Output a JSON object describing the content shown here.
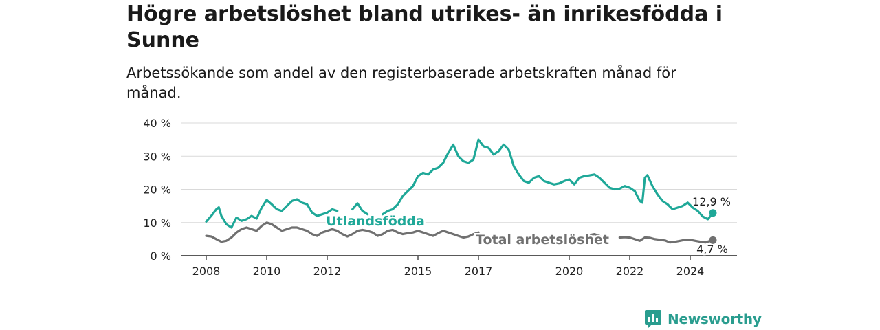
{
  "title": "Högre arbetslöshet bland utrikes- än inrikesfödda i Sunne",
  "subtitle": "Arbetssökande som andel av den registerbaserade arbetskraften månad för månad.",
  "brand": {
    "name": "Newsworthy",
    "color": "#2a9d8f",
    "icon": "newsworthy-logo-icon"
  },
  "colors": {
    "utlandsfodda": "#1fa898",
    "total": "#707070",
    "grid": "#d9d9d9",
    "axis": "#222222"
  },
  "chart_data": {
    "type": "line",
    "title": "Högre arbetslöshet bland utrikes- än inrikesfödda i Sunne",
    "subtitle": "Arbetssökande som andel av den registerbaserade arbetskraften månad för månad.",
    "xlabel": "",
    "ylabel": "",
    "xlim": [
      "2008-01",
      "2025-12"
    ],
    "ylim": [
      0,
      40
    ],
    "grid": true,
    "legend": "direct-labels",
    "yticks": [
      0,
      10,
      20,
      30,
      40
    ],
    "ytick_labels": [
      "0 %",
      "10 %",
      "20 %",
      "30 %",
      "40 %"
    ],
    "xticks": [
      "2008-01",
      "2010-01",
      "2012-01",
      "2015-01",
      "2017-01",
      "2020-01",
      "2022-01",
      "2024-01"
    ],
    "xtick_labels": [
      "2008",
      "2010",
      "2012",
      "2015",
      "2017",
      "2020",
      "2022",
      "2024"
    ],
    "series": [
      {
        "name": "Utlandsfödda",
        "color": "#1fa898",
        "end_label": "12,9 %",
        "segments": [
          [
            [
              "2008-01",
              10.3
            ],
            [
              "2008-03",
              12.0
            ],
            [
              "2008-05",
              14.0
            ],
            [
              "2008-06",
              14.6
            ],
            [
              "2008-07",
              12.0
            ],
            [
              "2008-09",
              9.5
            ],
            [
              "2008-11",
              8.5
            ],
            [
              "2009-01",
              11.5
            ],
            [
              "2009-03",
              10.5
            ],
            [
              "2009-05",
              11.0
            ],
            [
              "2009-07",
              12.0
            ],
            [
              "2009-09",
              11.2
            ],
            [
              "2009-11",
              14.5
            ],
            [
              "2010-01",
              16.8
            ],
            [
              "2010-03",
              15.5
            ],
            [
              "2010-05",
              14.0
            ],
            [
              "2010-07",
              13.5
            ],
            [
              "2010-09",
              15.0
            ],
            [
              "2010-11",
              16.5
            ],
            [
              "2011-01",
              17.0
            ],
            [
              "2011-03",
              16.0
            ],
            [
              "2011-05",
              15.5
            ],
            [
              "2011-07",
              13.0
            ],
            [
              "2011-09",
              12.0
            ],
            [
              "2011-11",
              12.5
            ],
            [
              "2012-01",
              13.0
            ],
            [
              "2012-03",
              14.0
            ],
            [
              "2012-05",
              13.5
            ]
          ],
          [
            [
              "2012-11",
              14.0
            ],
            [
              "2013-01",
              15.8
            ],
            [
              "2013-03",
              13.5
            ],
            [
              "2013-05",
              12.5
            ]
          ],
          [
            [
              "2013-11",
              12.5
            ],
            [
              "2014-01",
              13.5
            ],
            [
              "2014-03",
              14.0
            ],
            [
              "2014-05",
              15.5
            ],
            [
              "2014-07",
              18.0
            ],
            [
              "2014-09",
              19.5
            ],
            [
              "2014-11",
              21.0
            ],
            [
              "2015-01",
              24.0
            ],
            [
              "2015-03",
              25.0
            ],
            [
              "2015-05",
              24.5
            ],
            [
              "2015-07",
              26.0
            ],
            [
              "2015-09",
              26.5
            ],
            [
              "2015-11",
              28.0
            ],
            [
              "2016-01",
              31.0
            ],
            [
              "2016-03",
              33.5
            ],
            [
              "2016-05",
              30.0
            ],
            [
              "2016-07",
              28.5
            ],
            [
              "2016-09",
              28.0
            ],
            [
              "2016-11",
              29.0
            ],
            [
              "2017-01",
              35.0
            ],
            [
              "2017-03",
              33.0
            ],
            [
              "2017-05",
              32.5
            ],
            [
              "2017-07",
              30.5
            ],
            [
              "2017-09",
              31.5
            ],
            [
              "2017-11",
              33.5
            ],
            [
              "2018-01",
              32.0
            ],
            [
              "2018-03",
              27.0
            ],
            [
              "2018-05",
              24.5
            ],
            [
              "2018-07",
              22.5
            ],
            [
              "2018-09",
              22.0
            ],
            [
              "2018-11",
              23.5
            ],
            [
              "2019-01",
              24.0
            ],
            [
              "2019-03",
              22.5
            ],
            [
              "2019-05",
              22.0
            ],
            [
              "2019-07",
              21.5
            ],
            [
              "2019-09",
              21.8
            ],
            [
              "2019-11",
              22.5
            ],
            [
              "2020-01",
              23.0
            ],
            [
              "2020-03",
              21.5
            ],
            [
              "2020-05",
              23.5
            ],
            [
              "2020-07",
              24.0
            ],
            [
              "2020-09",
              24.2
            ],
            [
              "2020-11",
              24.5
            ],
            [
              "2021-01",
              23.5
            ],
            [
              "2021-03",
              22.0
            ],
            [
              "2021-05",
              20.5
            ],
            [
              "2021-07",
              20.0
            ],
            [
              "2021-09",
              20.2
            ],
            [
              "2021-11",
              21.0
            ],
            [
              "2022-01",
              20.5
            ],
            [
              "2022-03",
              19.5
            ],
            [
              "2022-05",
              16.5
            ],
            [
              "2022-06",
              16.0
            ],
            [
              "2022-07",
              23.5
            ],
            [
              "2022-08",
              24.3
            ],
            [
              "2022-10",
              21.0
            ],
            [
              "2022-12",
              18.5
            ],
            [
              "2023-02",
              16.5
            ],
            [
              "2023-04",
              15.5
            ],
            [
              "2023-06",
              14.0
            ],
            [
              "2023-08",
              14.5
            ],
            [
              "2023-10",
              15.0
            ],
            [
              "2023-12",
              16.0
            ],
            [
              "2024-02",
              14.5
            ],
            [
              "2024-04",
              13.5
            ],
            [
              "2024-06",
              11.8
            ],
            [
              "2024-08",
              11.0
            ],
            [
              "2024-10",
              12.9
            ]
          ]
        ],
        "last": [
          "2024-10",
          12.9
        ]
      },
      {
        "name": "Total arbetslöshet",
        "color": "#707070",
        "end_label": "4,7 %",
        "segments": [
          [
            [
              "2008-01",
              6.0
            ],
            [
              "2008-03",
              5.8
            ],
            [
              "2008-05",
              5.0
            ],
            [
              "2008-07",
              4.2
            ],
            [
              "2008-09",
              4.5
            ],
            [
              "2008-11",
              5.5
            ],
            [
              "2009-01",
              7.0
            ],
            [
              "2009-03",
              8.0
            ],
            [
              "2009-05",
              8.5
            ],
            [
              "2009-07",
              8.0
            ],
            [
              "2009-09",
              7.5
            ],
            [
              "2009-11",
              9.0
            ],
            [
              "2010-01",
              10.0
            ],
            [
              "2010-03",
              9.5
            ],
            [
              "2010-05",
              8.5
            ],
            [
              "2010-07",
              7.5
            ],
            [
              "2010-09",
              8.0
            ],
            [
              "2010-11",
              8.5
            ],
            [
              "2011-01",
              8.5
            ],
            [
              "2011-03",
              8.0
            ],
            [
              "2011-05",
              7.5
            ],
            [
              "2011-07",
              6.5
            ],
            [
              "2011-09",
              6.0
            ],
            [
              "2011-11",
              7.0
            ],
            [
              "2012-01",
              7.5
            ],
            [
              "2012-03",
              8.0
            ],
            [
              "2012-05",
              7.5
            ],
            [
              "2012-07",
              6.5
            ],
            [
              "2012-09",
              5.8
            ],
            [
              "2012-11",
              6.5
            ],
            [
              "2013-01",
              7.5
            ],
            [
              "2013-03",
              7.8
            ],
            [
              "2013-05",
              7.5
            ],
            [
              "2013-07",
              7.0
            ],
            [
              "2013-09",
              6.0
            ],
            [
              "2013-11",
              6.5
            ],
            [
              "2014-01",
              7.5
            ],
            [
              "2014-03",
              7.8
            ],
            [
              "2014-05",
              7.0
            ],
            [
              "2014-07",
              6.5
            ],
            [
              "2014-09",
              6.8
            ],
            [
              "2014-11",
              7.0
            ],
            [
              "2015-01",
              7.5
            ],
            [
              "2015-03",
              7.0
            ],
            [
              "2015-05",
              6.5
            ],
            [
              "2015-07",
              6.0
            ],
            [
              "2015-09",
              6.8
            ],
            [
              "2015-11",
              7.5
            ],
            [
              "2016-01",
              7.0
            ],
            [
              "2016-03",
              6.5
            ],
            [
              "2016-05",
              6.0
            ],
            [
              "2016-07",
              5.5
            ],
            [
              "2016-09",
              5.8
            ],
            [
              "2016-11",
              6.5
            ],
            [
              "2017-01",
              7.0
            ]
          ],
          [
            [
              "2020-09",
              6.2
            ],
            [
              "2020-11",
              6.5
            ],
            [
              "2021-01",
              6.0
            ]
          ],
          [
            [
              "2021-09",
              5.5
            ],
            [
              "2021-11",
              5.6
            ],
            [
              "2022-01",
              5.5
            ],
            [
              "2022-03",
              5.0
            ],
            [
              "2022-05",
              4.5
            ],
            [
              "2022-07",
              5.5
            ],
            [
              "2022-09",
              5.4
            ],
            [
              "2022-11",
              5.0
            ],
            [
              "2023-01",
              4.8
            ],
            [
              "2023-03",
              4.6
            ],
            [
              "2023-05",
              4.0
            ],
            [
              "2023-07",
              4.2
            ],
            [
              "2023-09",
              4.5
            ],
            [
              "2023-11",
              4.8
            ],
            [
              "2024-01",
              4.8
            ],
            [
              "2024-03",
              4.5
            ],
            [
              "2024-05",
              4.2
            ],
            [
              "2024-07",
              4.0
            ],
            [
              "2024-09",
              4.5
            ],
            [
              "2024-10",
              4.7
            ]
          ]
        ],
        "last": [
          "2024-10",
          4.7
        ]
      }
    ]
  }
}
